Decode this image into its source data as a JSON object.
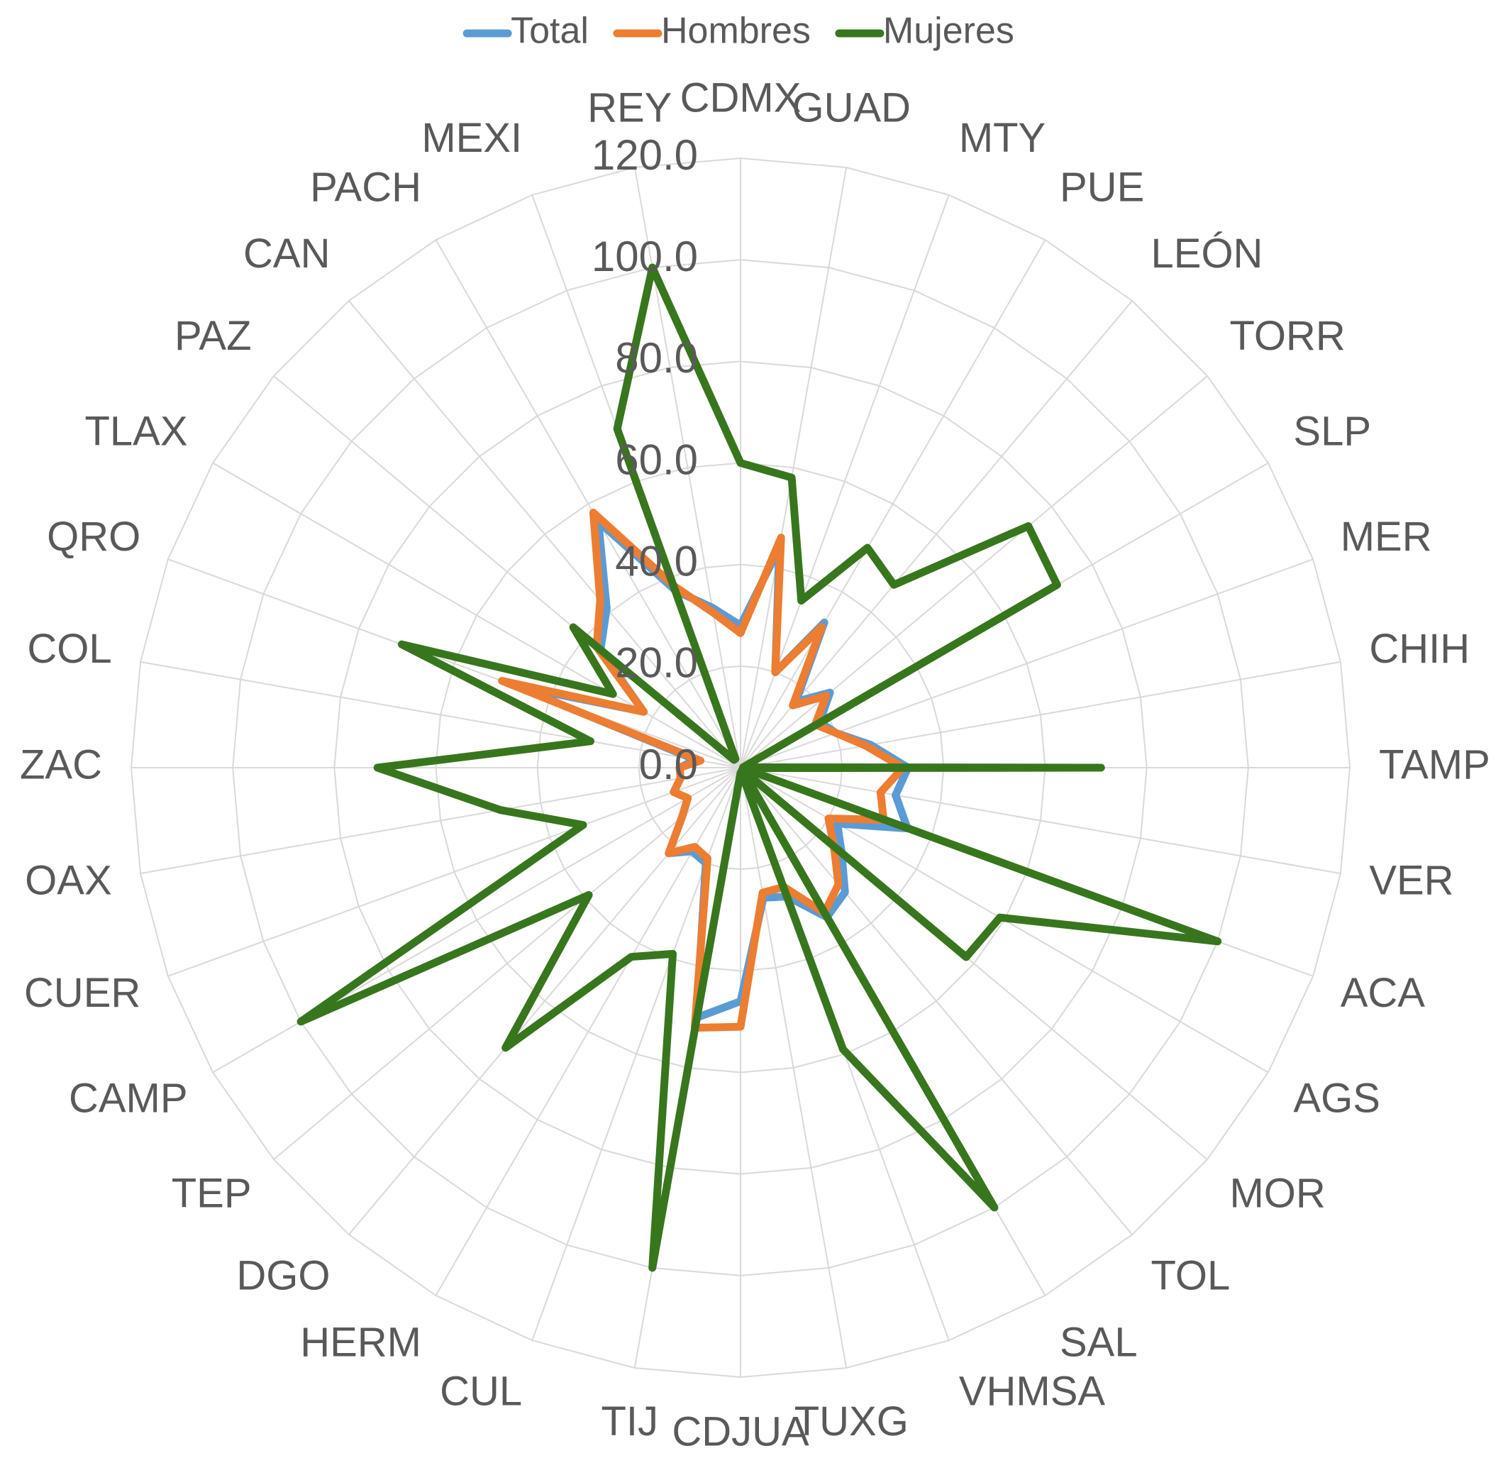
{
  "chart_data": {
    "type": "radar",
    "categories": [
      "CDMX",
      "GUAD",
      "MTY",
      "PUE",
      "LEÓN",
      "TORR",
      "SLP",
      "MER",
      "CHIH",
      "TAMP",
      "VER",
      "ACA",
      "AGS",
      "MOR",
      "TOL",
      "SAL",
      "VHMSA",
      "TUXG",
      "CDJUA",
      "TIJ",
      "CUL",
      "HERM",
      "DGO",
      "TEP",
      "CAMP",
      "CUER",
      "OAX",
      "ZAC",
      "COL",
      "QRO",
      "TLAX",
      "PAZ",
      "CAN",
      "PACH",
      "MEXI",
      "REY"
    ],
    "series": [
      {
        "name": "Total",
        "color": "#5b9bd5",
        "values": [
          28,
          44,
          20,
          33,
          17,
          23,
          18,
          20,
          26,
          33,
          31,
          35,
          22,
          26,
          32,
          34,
          27,
          26,
          46,
          50,
          20,
          19,
          22,
          15,
          12,
          14,
          12,
          12,
          9,
          47,
          22,
          36,
          41,
          56,
          37,
          32
        ]
      },
      {
        "name": "Hombres",
        "color": "#ed7d31",
        "values": [
          26.5,
          46,
          20,
          32,
          16,
          22,
          17,
          20,
          25,
          32,
          28,
          30,
          20,
          24,
          30,
          33,
          25,
          25,
          51,
          52,
          19,
          18,
          22,
          15,
          12,
          14,
          12,
          12,
          8,
          50,
          22,
          37,
          43,
          58,
          38,
          31
        ]
      },
      {
        "name": "Mujeres",
        "color": "#38761d",
        "values": [
          60,
          58,
          35,
          50,
          47,
          74,
          72,
          1,
          0.5,
          71,
          0.5,
          100,
          59,
          58,
          0.5,
          100,
          59,
          1,
          1,
          100,
          39,
          43,
          72,
          39,
          100,
          33,
          48,
          71.5,
          30,
          71,
          29,
          43,
          2,
          2,
          71,
          100
        ]
      }
    ],
    "ylim": [
      0,
      120
    ],
    "yticks": [
      {
        "value": 0,
        "label": "0.0"
      },
      {
        "value": 20,
        "label": "20.0"
      },
      {
        "value": 40,
        "label": "40.0"
      },
      {
        "value": 60,
        "label": "60.0"
      },
      {
        "value": 80,
        "label": "80.0"
      },
      {
        "value": 100,
        "label": "100.0"
      },
      {
        "value": 120,
        "label": "120.0"
      }
    ],
    "grid": true,
    "legend": "top"
  }
}
